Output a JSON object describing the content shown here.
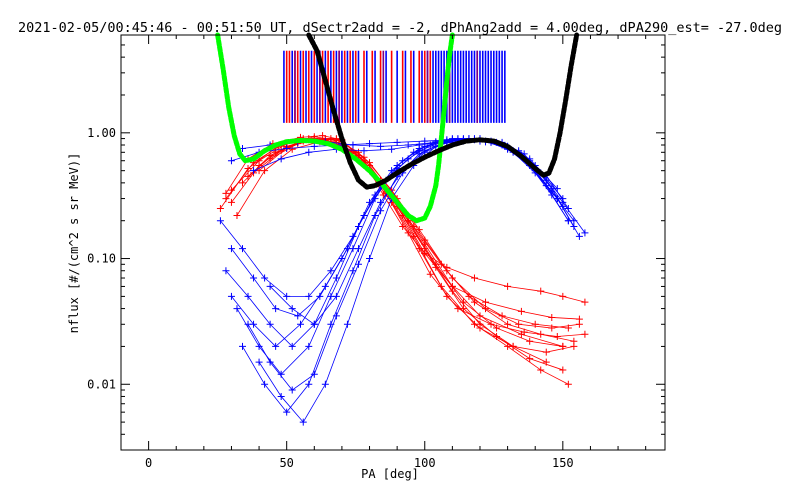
{
  "chart_data": {
    "type": "line",
    "title": "2021-02-05/00:45:46 - 00:51:50 UT, dSectr2add = -2, dPhAng2add = 4.00deg, dPA290_est= -27.0deg",
    "xlabel": "PA [deg]",
    "ylabel": "nflux [#/(cm^2 s sr MeV)]",
    "xlim": [
      -10,
      187
    ],
    "ylim": [
      0.003,
      6
    ],
    "yscale": "log",
    "grid": false,
    "x_ticks": [
      {
        "value": 0,
        "label": "0"
      },
      {
        "value": 50,
        "label": "50"
      },
      {
        "value": 100,
        "label": "100"
      },
      {
        "value": 150,
        "label": "150"
      }
    ],
    "y_ticks": [
      {
        "value": 0.01,
        "label": "0.01"
      },
      {
        "value": 0.1,
        "label": "0.10"
      },
      {
        "value": 1,
        "label": "1.00"
      }
    ],
    "colors": {
      "blue": "#0000ff",
      "red": "#ff0000",
      "green": "#00ff00",
      "black": "#000000",
      "purple": "#800080"
    },
    "fit_curves": [
      {
        "color": "#00ff00",
        "x": [
          25,
          27,
          29,
          31,
          33,
          35,
          38,
          42,
          46,
          50,
          55,
          60,
          65,
          70,
          75,
          80,
          85,
          90,
          94,
          97,
          100,
          102,
          104,
          105,
          106,
          107,
          108,
          109,
          110
        ],
        "y": [
          6,
          3.2,
          1.6,
          0.95,
          0.68,
          0.6,
          0.62,
          0.72,
          0.8,
          0.85,
          0.87,
          0.86,
          0.82,
          0.74,
          0.62,
          0.5,
          0.38,
          0.28,
          0.22,
          0.2,
          0.21,
          0.26,
          0.38,
          0.55,
          0.9,
          1.5,
          2.6,
          4.2,
          6
        ]
      },
      {
        "color": "#000000",
        "x": [
          58,
          61,
          64,
          67,
          70,
          73,
          76,
          79,
          82,
          86,
          90,
          95,
          100,
          105,
          110,
          115,
          120,
          125,
          130,
          135,
          140,
          143,
          145,
          147,
          149,
          151,
          153,
          155
        ],
        "y": [
          6,
          4.5,
          2.6,
          1.5,
          0.9,
          0.58,
          0.42,
          0.37,
          0.38,
          0.42,
          0.48,
          0.56,
          0.64,
          0.72,
          0.8,
          0.86,
          0.88,
          0.86,
          0.78,
          0.65,
          0.52,
          0.46,
          0.48,
          0.62,
          1.0,
          1.8,
          3.4,
          6
        ]
      }
    ],
    "red_curves": [
      {
        "x": [
          28,
          36,
          45,
          55,
          63,
          70,
          78,
          85,
          92,
          100,
          108,
          118,
          130,
          142,
          150,
          158
        ],
        "y": [
          0.33,
          0.62,
          0.82,
          0.92,
          0.95,
          0.88,
          0.6,
          0.32,
          0.18,
          0.11,
          0.085,
          0.07,
          0.06,
          0.055,
          0.05,
          0.045
        ]
      },
      {
        "x": [
          30,
          40,
          50,
          60,
          68,
          76,
          84,
          92,
          100,
          110,
          122,
          135,
          146,
          156
        ],
        "y": [
          0.28,
          0.55,
          0.78,
          0.9,
          0.88,
          0.7,
          0.42,
          0.22,
          0.11,
          0.06,
          0.045,
          0.038,
          0.034,
          0.033
        ]
      },
      {
        "x": [
          32,
          42,
          52,
          62,
          70,
          78,
          86,
          94,
          102,
          112,
          124,
          136,
          148,
          158
        ],
        "y": [
          0.22,
          0.5,
          0.74,
          0.85,
          0.8,
          0.6,
          0.33,
          0.16,
          0.075,
          0.04,
          0.03,
          0.026,
          0.024,
          0.025
        ]
      },
      {
        "x": [
          28,
          38,
          48,
          58,
          68,
          78,
          88,
          98,
          108,
          120,
          132,
          144,
          154
        ],
        "y": [
          0.3,
          0.58,
          0.8,
          0.9,
          0.84,
          0.55,
          0.28,
          0.12,
          0.05,
          0.028,
          0.02,
          0.018,
          0.02
        ]
      },
      {
        "x": [
          34,
          44,
          54,
          64,
          74,
          84,
          94,
          104,
          114,
          126,
          138,
          150
        ],
        "y": [
          0.4,
          0.66,
          0.84,
          0.88,
          0.72,
          0.42,
          0.2,
          0.085,
          0.04,
          0.024,
          0.016,
          0.013
        ]
      },
      {
        "x": [
          36,
          46,
          56,
          66,
          76,
          86,
          96,
          106,
          118,
          130,
          142,
          152
        ],
        "y": [
          0.45,
          0.7,
          0.86,
          0.85,
          0.62,
          0.34,
          0.15,
          0.06,
          0.03,
          0.02,
          0.013,
          0.01
        ]
      },
      {
        "x": [
          30,
          40,
          50,
          60,
          70,
          80,
          90,
          100,
          110,
          122,
          134,
          146,
          156
        ],
        "y": [
          0.35,
          0.6,
          0.82,
          0.93,
          0.86,
          0.58,
          0.3,
          0.14,
          0.07,
          0.04,
          0.03,
          0.028,
          0.03
        ]
      },
      {
        "x": [
          40,
          50,
          60,
          70,
          80,
          90,
          100,
          110,
          120,
          132,
          144
        ],
        "y": [
          0.5,
          0.76,
          0.9,
          0.82,
          0.5,
          0.26,
          0.12,
          0.055,
          0.03,
          0.02,
          0.015
        ]
      },
      {
        "x": [
          26,
          36,
          46,
          56,
          66,
          76,
          86,
          96,
          106,
          116,
          128,
          140,
          152
        ],
        "y": [
          0.25,
          0.52,
          0.76,
          0.9,
          0.9,
          0.66,
          0.36,
          0.18,
          0.09,
          0.05,
          0.035,
          0.03,
          0.028
        ]
      },
      {
        "x": [
          44,
          54,
          64,
          74,
          84,
          94,
          104,
          114,
          126,
          138,
          150
        ],
        "y": [
          0.62,
          0.82,
          0.88,
          0.7,
          0.4,
          0.2,
          0.09,
          0.045,
          0.028,
          0.022,
          0.02
        ]
      },
      {
        "x": [
          38,
          48,
          58,
          68,
          78,
          88,
          98,
          108,
          118,
          130,
          142,
          154
        ],
        "y": [
          0.48,
          0.72,
          0.88,
          0.9,
          0.64,
          0.35,
          0.17,
          0.08,
          0.045,
          0.03,
          0.025,
          0.022
        ]
      },
      {
        "x": [
          50,
          60,
          70,
          80,
          90,
          100,
          110,
          120,
          135,
          150
        ],
        "y": [
          0.78,
          0.9,
          0.86,
          0.55,
          0.28,
          0.13,
          0.06,
          0.035,
          0.025,
          0.02
        ]
      }
    ],
    "blue_curves": [
      {
        "x": [
          30,
          38,
          46,
          55,
          64,
          72,
          80,
          88,
          96,
          104,
          112,
          120,
          128,
          136,
          144,
          152
        ],
        "y": [
          0.05,
          0.03,
          0.02,
          0.03,
          0.06,
          0.12,
          0.28,
          0.5,
          0.7,
          0.85,
          0.9,
          0.88,
          0.8,
          0.62,
          0.38,
          0.2
        ]
      },
      {
        "x": [
          32,
          40,
          48,
          58,
          66,
          74,
          82,
          90,
          98,
          106,
          114,
          122,
          130,
          138,
          146,
          154
        ],
        "y": [
          0.04,
          0.02,
          0.012,
          0.02,
          0.05,
          0.12,
          0.3,
          0.55,
          0.75,
          0.85,
          0.88,
          0.85,
          0.78,
          0.6,
          0.36,
          0.18
        ]
      },
      {
        "x": [
          28,
          36,
          44,
          52,
          60,
          68,
          76,
          84,
          92,
          100,
          108,
          116,
          124,
          132,
          140,
          148,
          156
        ],
        "y": [
          0.08,
          0.05,
          0.03,
          0.02,
          0.03,
          0.07,
          0.18,
          0.38,
          0.6,
          0.78,
          0.88,
          0.9,
          0.85,
          0.72,
          0.5,
          0.3,
          0.15
        ]
      },
      {
        "x": [
          34,
          42,
          50,
          58,
          66,
          74,
          82,
          90,
          98,
          106,
          114,
          122,
          130,
          138,
          146,
          152
        ],
        "y": [
          0.02,
          0.01,
          0.006,
          0.01,
          0.03,
          0.08,
          0.22,
          0.45,
          0.68,
          0.82,
          0.86,
          0.85,
          0.75,
          0.55,
          0.32,
          0.2
        ]
      },
      {
        "x": [
          30,
          38,
          46,
          54,
          62,
          70,
          78,
          86,
          94,
          102,
          110,
          118,
          126,
          134,
          142,
          150,
          158
        ],
        "y": [
          0.12,
          0.07,
          0.04,
          0.035,
          0.05,
          0.1,
          0.22,
          0.42,
          0.62,
          0.8,
          0.9,
          0.9,
          0.84,
          0.7,
          0.48,
          0.28,
          0.16
        ]
      },
      {
        "x": [
          40,
          48,
          56,
          64,
          72,
          80,
          88,
          96,
          104,
          112,
          120,
          128,
          136,
          144,
          150
        ],
        "y": [
          0.015,
          0.008,
          0.005,
          0.01,
          0.03,
          0.1,
          0.3,
          0.55,
          0.78,
          0.88,
          0.9,
          0.84,
          0.68,
          0.42,
          0.26
        ]
      },
      {
        "x": [
          26,
          34,
          42,
          50,
          58,
          66,
          74,
          82,
          90,
          98,
          106,
          114,
          122,
          130,
          138,
          146,
          154
        ],
        "y": [
          0.2,
          0.12,
          0.07,
          0.05,
          0.05,
          0.08,
          0.15,
          0.32,
          0.52,
          0.72,
          0.84,
          0.9,
          0.86,
          0.74,
          0.55,
          0.34,
          0.2
        ]
      },
      {
        "x": [
          36,
          44,
          52,
          60,
          68,
          76,
          84,
          92,
          100,
          108,
          116,
          124,
          132,
          140,
          148
        ],
        "y": [
          0.03,
          0.015,
          0.009,
          0.012,
          0.035,
          0.09,
          0.24,
          0.48,
          0.7,
          0.84,
          0.9,
          0.86,
          0.72,
          0.5,
          0.3
        ]
      },
      {
        "x": [
          44,
          52,
          60,
          68,
          76,
          84,
          92,
          100,
          108,
          116,
          124,
          132,
          140,
          148
        ],
        "y": [
          0.06,
          0.04,
          0.03,
          0.05,
          0.12,
          0.28,
          0.5,
          0.72,
          0.85,
          0.88,
          0.84,
          0.7,
          0.48,
          0.3
        ]
      },
      {
        "x": [
          30,
          40,
          50,
          60,
          70,
          80,
          90,
          100,
          110,
          120,
          130,
          140,
          150
        ],
        "y": [
          0.6,
          0.7,
          0.75,
          0.78,
          0.8,
          0.82,
          0.84,
          0.86,
          0.88,
          0.86,
          0.78,
          0.55,
          0.3
        ]
      },
      {
        "x": [
          34,
          44,
          54,
          64,
          74,
          84,
          94,
          104,
          114,
          124,
          134,
          144,
          152
        ],
        "y": [
          0.75,
          0.8,
          0.84,
          0.85,
          0.8,
          0.78,
          0.8,
          0.84,
          0.88,
          0.85,
          0.72,
          0.46,
          0.25
        ]
      },
      {
        "x": [
          38,
          48,
          58,
          68,
          78,
          88,
          98,
          108,
          118,
          128,
          138,
          148
        ],
        "y": [
          0.5,
          0.62,
          0.7,
          0.74,
          0.72,
          0.74,
          0.8,
          0.86,
          0.88,
          0.82,
          0.62,
          0.36
        ]
      }
    ],
    "vertical_lines": {
      "y_range": [
        1.2,
        4.5
      ],
      "blue_x": [
        49,
        52,
        55,
        57,
        59,
        61,
        62,
        64,
        66,
        68,
        70,
        72,
        74,
        76,
        79,
        82,
        86,
        90,
        93,
        96,
        99,
        101,
        103,
        104,
        105,
        106,
        107,
        108,
        109,
        110,
        111,
        112,
        113,
        114,
        115,
        116,
        117,
        118,
        119,
        120,
        121,
        122,
        123,
        124,
        125,
        126,
        127,
        128,
        129
      ],
      "red_x": [
        50,
        51,
        53,
        54,
        56,
        58,
        60,
        63,
        65,
        67,
        69,
        71,
        73,
        75,
        78,
        81,
        84,
        88,
        92,
        95,
        98,
        100,
        102
      ],
      "purple_x": [
        53,
        62,
        69,
        85,
        101,
        109,
        119
      ]
    }
  }
}
